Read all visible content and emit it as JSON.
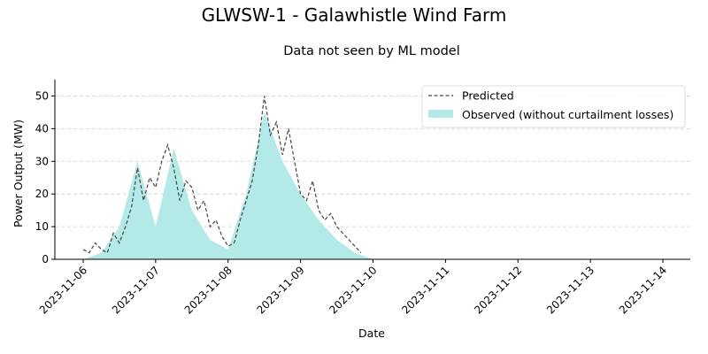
{
  "chart_data": {
    "type": "area",
    "title": "GLWSW-1 - Galawhistle Wind Farm",
    "subtitle": "Data not seen by ML model",
    "xlabel": "Date",
    "ylabel": "Power Output (MW)",
    "xlim": [
      "2023-11-06",
      "2023-11-14"
    ],
    "ylim": [
      0,
      55
    ],
    "x_ticks": [
      "2023-11-06",
      "2023-11-07",
      "2023-11-08",
      "2023-11-09",
      "2023-11-10",
      "2023-11-11",
      "2023-11-12",
      "2023-11-13",
      "2023-11-14"
    ],
    "y_ticks": [
      0,
      10,
      20,
      30,
      40,
      50
    ],
    "grid": "horizontal-dashed",
    "legend_position": "top-right",
    "series": [
      {
        "name": "Predicted",
        "style": "dashed-line",
        "color": "#444444",
        "points": [
          [
            "2023-11-06 00:00",
            3
          ],
          [
            "2023-11-06 02:00",
            2
          ],
          [
            "2023-11-06 04:00",
            5
          ],
          [
            "2023-11-06 06:00",
            3
          ],
          [
            "2023-11-06 08:00",
            2
          ],
          [
            "2023-11-06 10:00",
            8
          ],
          [
            "2023-11-06 12:00",
            5
          ],
          [
            "2023-11-06 14:00",
            10
          ],
          [
            "2023-11-06 16:00",
            16
          ],
          [
            "2023-11-06 18:00",
            28
          ],
          [
            "2023-11-06 20:00",
            18
          ],
          [
            "2023-11-06 22:00",
            25
          ],
          [
            "2023-11-07 00:00",
            22
          ],
          [
            "2023-11-07 02:00",
            30
          ],
          [
            "2023-11-07 04:00",
            35
          ],
          [
            "2023-11-07 06:00",
            28
          ],
          [
            "2023-11-07 08:00",
            18
          ],
          [
            "2023-11-07 10:00",
            24
          ],
          [
            "2023-11-07 12:00",
            22
          ],
          [
            "2023-11-07 14:00",
            15
          ],
          [
            "2023-11-07 16:00",
            18
          ],
          [
            "2023-11-07 18:00",
            10
          ],
          [
            "2023-11-07 20:00",
            12
          ],
          [
            "2023-11-07 22:00",
            7
          ],
          [
            "2023-11-08 00:00",
            4
          ],
          [
            "2023-11-08 02:00",
            5
          ],
          [
            "2023-11-08 04:00",
            12
          ],
          [
            "2023-11-08 06:00",
            18
          ],
          [
            "2023-11-08 08:00",
            24
          ],
          [
            "2023-11-08 10:00",
            35
          ],
          [
            "2023-11-08 12:00",
            50
          ],
          [
            "2023-11-08 14:00",
            38
          ],
          [
            "2023-11-08 16:00",
            42
          ],
          [
            "2023-11-08 18:00",
            32
          ],
          [
            "2023-11-08 20:00",
            40
          ],
          [
            "2023-11-08 22:00",
            30
          ],
          [
            "2023-11-09 00:00",
            20
          ],
          [
            "2023-11-09 02:00",
            18
          ],
          [
            "2023-11-09 04:00",
            24
          ],
          [
            "2023-11-09 06:00",
            15
          ],
          [
            "2023-11-09 08:00",
            12
          ],
          [
            "2023-11-09 10:00",
            14
          ],
          [
            "2023-11-09 12:00",
            10
          ],
          [
            "2023-11-09 14:00",
            8
          ],
          [
            "2023-11-09 16:00",
            6
          ],
          [
            "2023-11-09 18:00",
            4
          ],
          [
            "2023-11-09 20:00",
            2
          ]
        ]
      },
      {
        "name": "Observed (without curtailment losses)",
        "style": "filled-area",
        "color": "#b3e9e6",
        "points": [
          [
            "2023-11-06 00:00",
            0
          ],
          [
            "2023-11-06 06:00",
            2
          ],
          [
            "2023-11-06 12:00",
            10
          ],
          [
            "2023-11-06 18:00",
            30
          ],
          [
            "2023-11-07 00:00",
            10
          ],
          [
            "2023-11-07 06:00",
            34
          ],
          [
            "2023-11-07 12:00",
            15
          ],
          [
            "2023-11-07 18:00",
            6
          ],
          [
            "2023-11-08 00:00",
            3
          ],
          [
            "2023-11-08 06:00",
            20
          ],
          [
            "2023-11-08 12:00",
            45
          ],
          [
            "2023-11-08 18:00",
            30
          ],
          [
            "2023-11-09 00:00",
            20
          ],
          [
            "2023-11-09 06:00",
            12
          ],
          [
            "2023-11-09 12:00",
            6
          ],
          [
            "2023-11-09 18:00",
            2
          ],
          [
            "2023-11-10 00:00",
            0
          ]
        ]
      }
    ]
  }
}
